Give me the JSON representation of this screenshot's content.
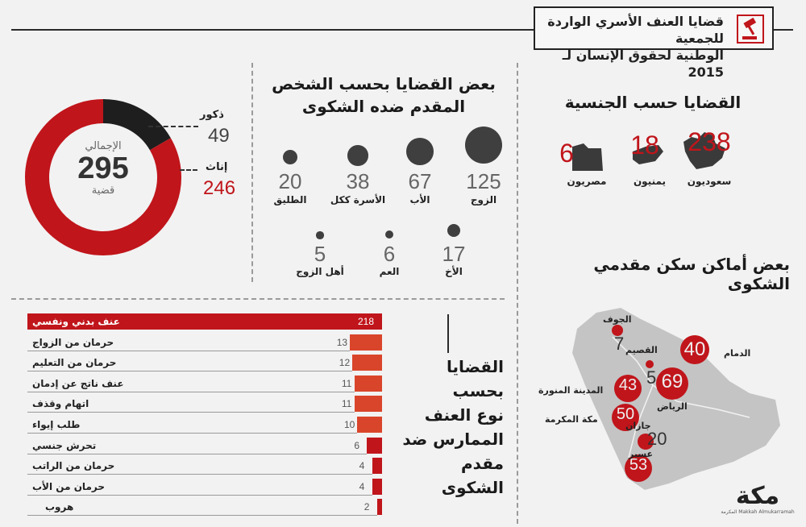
{
  "header": {
    "title_line1": "قضايا العنف الأسري الواردة للجمعية",
    "title_line2": "الوطنية لحقوق الإنسان لـ 2015"
  },
  "gender": {
    "total_label": "الإجمالي",
    "total": "295",
    "total_unit": "قضية",
    "male_label": "ذكور",
    "male_value": "49",
    "female_label": "إناث",
    "female_value": "246"
  },
  "complainant": {
    "title_line1": "بعض القضايا بحسب الشخص",
    "title_line2": "المقدم ضده الشكوى",
    "items": [
      {
        "label": "الزوج",
        "value": "125"
      },
      {
        "label": "الأب",
        "value": "67"
      },
      {
        "label": "الأسرة ككل",
        "value": "38"
      },
      {
        "label": "الطليق",
        "value": "20"
      },
      {
        "label": "الأخ",
        "value": "17"
      },
      {
        "label": "العم",
        "value": "6"
      },
      {
        "label": "أهل الزوج",
        "value": "5"
      }
    ]
  },
  "nationality": {
    "title": "القضايا حسب الجنسية",
    "items": [
      {
        "label": "سعوديون",
        "value": "238"
      },
      {
        "label": "يمنيون",
        "value": "18"
      },
      {
        "label": "مصريون",
        "value": "6"
      }
    ]
  },
  "violence": {
    "title_line1": "القضايا بحسب",
    "title_line2": "نوع العنف",
    "title_line3": "الممارس ضد",
    "title_line4": "مقدم الشكوى"
  },
  "locations": {
    "title": "بعض أماكن سكن مقدمي الشكوى",
    "cities": [
      {
        "name": "الجوف",
        "value": "7"
      },
      {
        "name": "القصيم",
        "value": "5"
      },
      {
        "name": "الدمام",
        "value": "40"
      },
      {
        "name": "الرياض",
        "value": "69"
      },
      {
        "name": "المدينة المنورة",
        "value": "43"
      },
      {
        "name": "مكة المكرمة",
        "value": "50"
      },
      {
        "name": "جازان",
        "value": "53"
      },
      {
        "name": "عسير",
        "value": "20"
      }
    ]
  },
  "brand": {
    "logo": "مكة",
    "tagline": "المكرمة Makkah Almukarramah"
  },
  "colors": {
    "accent": "#c0151b",
    "bar_light": "#d9452a",
    "dark": "#3f3f3f",
    "ring_dark": "#1e1e1e"
  },
  "chart_data": [
    {
      "type": "pie",
      "title": "الإجمالي",
      "categories": [
        "ذكور",
        "إناث"
      ],
      "values": [
        49,
        246
      ],
      "total": 295
    },
    {
      "type": "bar",
      "title": "القضايا بحسب نوع العنف الممارس ضد مقدم الشكوى",
      "categories": [
        "عنف بدني ونفسي",
        "حرمان من الزواج",
        "حرمان من التعليم",
        "عنف ناتج عن إدمان",
        "اتهام وقذف",
        "طلب إيواء",
        "تحرش جنسي",
        "حرمان من الراتب",
        "حرمان من الأب",
        "هروب"
      ],
      "values": [
        218,
        13,
        12,
        11,
        11,
        10,
        6,
        4,
        4,
        2
      ]
    },
    {
      "type": "scatter",
      "title": "بعض القضايا بحسب الشخص المقدم ضده الشكوى",
      "categories": [
        "الزوج",
        "الأب",
        "الأسرة ككل",
        "الطليق",
        "الأخ",
        "العم",
        "أهل الزوج"
      ],
      "values": [
        125,
        67,
        38,
        20,
        17,
        6,
        5
      ]
    }
  ]
}
